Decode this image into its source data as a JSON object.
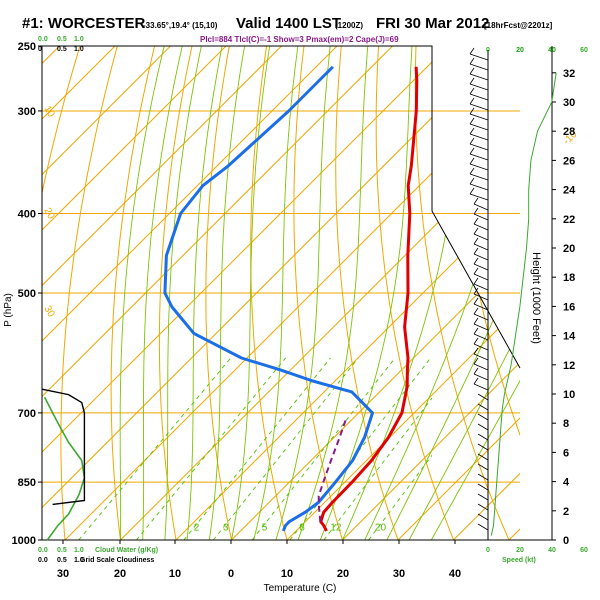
{
  "header": {
    "station": "#1: WORCESTER",
    "coords": "-33.65°,19.4° (15,10)",
    "valid": "Valid 1400 LST",
    "utc": "(1200Z)",
    "date": "FRI 30 Mar 2012",
    "forecast": "[18hrFcst@2201z]",
    "indices": "Plcl=884  Tlcl(C)=-1  Show=3  Pmax(em)=2  Cape(J)=69"
  },
  "colors": {
    "temperature": "#e00000",
    "dewpoint": "#1a6ee8",
    "parcel": "#8b1a8b",
    "isotherm": "#f0a800",
    "dry_adiabat": "#f0a800",
    "moist_adiabat": "#7dc400",
    "mixing_ratio": "#4fbf00",
    "cloud_water": "#3aa82e",
    "wind_speed": "#3aa82e"
  },
  "chart_data": {
    "type": "skew-t",
    "xlabel": "Temperature (C)",
    "ylabel": "P (hPa)",
    "y2label": "Height (1000 Feet)",
    "x_ticks": [
      "30",
      "20",
      "10",
      "0",
      "10",
      "20",
      "30",
      "40"
    ],
    "p_ticks": [
      "250",
      "300",
      "400",
      "500",
      "700",
      "850",
      "1000"
    ],
    "height_ticks": [
      "0",
      "2",
      "4",
      "6",
      "8",
      "10",
      "12",
      "14",
      "16",
      "18",
      "20",
      "22",
      "24",
      "26",
      "28",
      "30",
      "32"
    ],
    "temperature": [
      {
        "p": 975,
        "t": 15.5
      },
      {
        "p": 960,
        "t": 14.0
      },
      {
        "p": 950,
        "t": 12.8
      },
      {
        "p": 925,
        "t": 11.6
      },
      {
        "p": 900,
        "t": 11.4
      },
      {
        "p": 850,
        "t": 11.3
      },
      {
        "p": 800,
        "t": 10.9
      },
      {
        "p": 750,
        "t": 9.8
      },
      {
        "p": 700,
        "t": 7.8
      },
      {
        "p": 650,
        "t": 4.0
      },
      {
        "p": 620,
        "t": 1.0
      },
      {
        "p": 600,
        "t": -1.0
      },
      {
        "p": 550,
        "t": -7.2
      },
      {
        "p": 500,
        "t": -12.7
      },
      {
        "p": 450,
        "t": -19.5
      },
      {
        "p": 400,
        "t": -26.7
      },
      {
        "p": 370,
        "t": -32.0
      },
      {
        "p": 350,
        "t": -35.0
      },
      {
        "p": 300,
        "t": -44.0
      },
      {
        "p": 275,
        "t": -49.5
      },
      {
        "p": 265,
        "t": -52.0
      }
    ],
    "dewpoint": [
      {
        "p": 975,
        "t": 7.7
      },
      {
        "p": 960,
        "t": 7.1
      },
      {
        "p": 950,
        "t": 7.1
      },
      {
        "p": 925,
        "t": 8.3
      },
      {
        "p": 900,
        "t": 8.9
      },
      {
        "p": 850,
        "t": 8.3
      },
      {
        "p": 800,
        "t": 7.5
      },
      {
        "p": 750,
        "t": 5.5
      },
      {
        "p": 700,
        "t": 2.5
      },
      {
        "p": 680,
        "t": -1.2
      },
      {
        "p": 660,
        "t": -5.0
      },
      {
        "p": 640,
        "t": -14.0
      },
      {
        "p": 620,
        "t": -22.0
      },
      {
        "p": 600,
        "t": -31.0
      },
      {
        "p": 560,
        "t": -44.0
      },
      {
        "p": 520,
        "t": -52.7
      },
      {
        "p": 500,
        "t": -56.5
      },
      {
        "p": 450,
        "t": -63.0
      },
      {
        "p": 400,
        "t": -68.0
      },
      {
        "p": 370,
        "t": -69.0
      },
      {
        "p": 350,
        "t": -68.0
      },
      {
        "p": 300,
        "t": -67.0
      },
      {
        "p": 275,
        "t": -67.0
      },
      {
        "p": 265,
        "t": -67.0
      }
    ],
    "parcel": [
      {
        "p": 950,
        "t": 12.7
      },
      {
        "p": 910,
        "t": 9.7
      },
      {
        "p": 884,
        "t": 7.8
      },
      {
        "p": 850,
        "t": 6.1
      },
      {
        "p": 800,
        "t": 3.6
      },
      {
        "p": 750,
        "t": 1.0
      },
      {
        "p": 715,
        "t": -1.0
      }
    ],
    "wind_speed_kt": [
      {
        "h": 0.3,
        "v": 3
      },
      {
        "h": 1.0,
        "v": 5
      },
      {
        "h": 2.0,
        "v": 6
      },
      {
        "h": 3.0,
        "v": 7
      },
      {
        "h": 4.0,
        "v": 8
      },
      {
        "h": 5.0,
        "v": 9
      },
      {
        "h": 6.0,
        "v": 10
      },
      {
        "h": 7.0,
        "v": 11
      },
      {
        "h": 8.0,
        "v": 12
      },
      {
        "h": 9.0,
        "v": 13
      },
      {
        "h": 10.0,
        "v": 15
      },
      {
        "h": 11.0,
        "v": 18
      },
      {
        "h": 12.0,
        "v": 21
      },
      {
        "h": 14.0,
        "v": 25
      },
      {
        "h": 16.0,
        "v": 29
      },
      {
        "h": 18.0,
        "v": 32
      },
      {
        "h": 20.0,
        "v": 35
      },
      {
        "h": 22.0,
        "v": 37
      },
      {
        "h": 24.0,
        "v": 37
      },
      {
        "h": 26.0,
        "v": 39
      },
      {
        "h": 28.0,
        "v": 45
      },
      {
        "h": 30.0,
        "v": 58
      },
      {
        "h": 32.0,
        "v": 62
      }
    ],
    "cloud_water": [
      {
        "p": 1000,
        "v": 0.1
      },
      {
        "p": 960,
        "v": 0.3
      },
      {
        "p": 930,
        "v": 0.5
      },
      {
        "p": 880,
        "v": 0.7
      },
      {
        "p": 840,
        "v": 0.8
      },
      {
        "p": 800,
        "v": 0.75
      },
      {
        "p": 760,
        "v": 0.5
      },
      {
        "p": 730,
        "v": 0.35
      },
      {
        "p": 700,
        "v": 0.2
      },
      {
        "p": 670,
        "v": 0.05
      }
    ],
    "cloud_fraction": [
      {
        "p": 655,
        "v": 0.0
      },
      {
        "p": 665,
        "v": 0.5
      },
      {
        "p": 680,
        "v": 0.75
      },
      {
        "p": 700,
        "v": 0.8
      },
      {
        "p": 750,
        "v": 0.8
      },
      {
        "p": 800,
        "v": 0.8
      },
      {
        "p": 850,
        "v": 0.8
      },
      {
        "p": 895,
        "v": 0.8
      },
      {
        "p": 905,
        "v": 0.2
      }
    ],
    "isotherm_labels": [
      {
        "text": "-10",
        "t": -10
      },
      {
        "text": "0",
        "t": 0
      },
      {
        "text": "10",
        "t": 10
      },
      {
        "text": "20",
        "t": 20
      },
      {
        "text": "30",
        "t": 30
      }
    ],
    "dry_adiabat_labels": [
      {
        "text": "10",
        "theta": 10
      },
      {
        "text": "20",
        "theta": 20
      },
      {
        "text": "30",
        "theta": 30
      }
    ],
    "mixing_ratio_labels": [
      {
        "text": "2",
        "w": 2
      },
      {
        "text": "3",
        "w": 3
      },
      {
        "text": "5",
        "w": 5
      },
      {
        "text": "8",
        "w": 8
      },
      {
        "text": "12",
        "w": 12
      },
      {
        "text": "20",
        "w": 20
      }
    ],
    "cloud_panel": {
      "top_ticks_a": [
        "0.0",
        "0.5",
        "1.0"
      ],
      "top_ticks_b": [
        "0",
        "0.5",
        "1.0"
      ],
      "bottom_ticks_a": [
        "0.0",
        "0.5",
        "1.0"
      ],
      "bottom_ticks_b": [
        "0.0",
        "0.5",
        "1.0"
      ],
      "water_label": "Cloud Water (g/Kg)",
      "shade_label": "Grid Scale Cloudiness"
    },
    "wind_panel": {
      "top_ticks_a": [
        "0",
        "20",
        "40"
      ],
      "top_ticks_b": [
        "20",
        "40",
        "60"
      ],
      "bottom_ticks_a": [
        "0",
        "20"
      ],
      "bottom_ticks_b": [
        "40",
        "60"
      ],
      "speed_label": "Speed (kt)"
    }
  }
}
